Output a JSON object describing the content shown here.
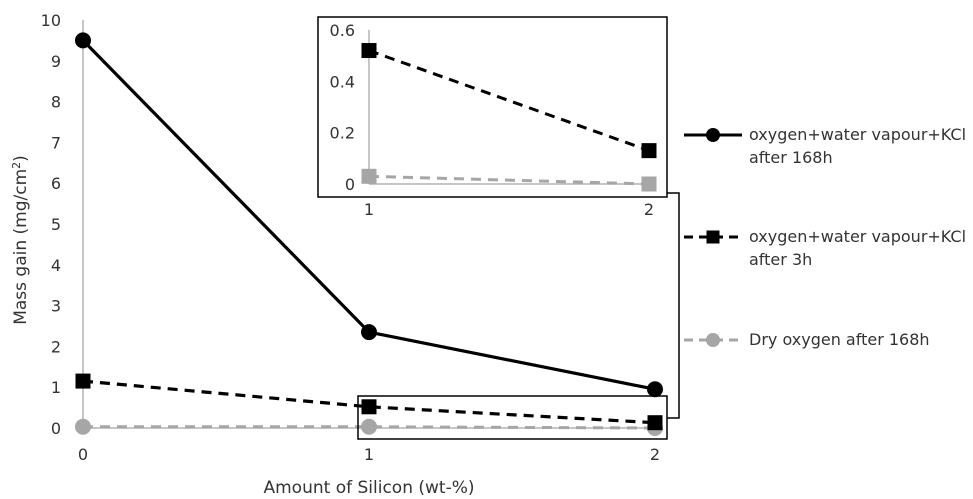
{
  "chart_data": {
    "type": "line",
    "xlabel": "Amount of Silicon (wt-%)",
    "ylabel": "Mass gain (mg/cm²)",
    "ylabel_parts": {
      "pre": "Mass gain (mg/cm",
      "sup": "2",
      "post": ")"
    },
    "x": [
      0,
      1,
      2
    ],
    "x_ticks": [
      "0",
      "1",
      "2"
    ],
    "ylim": [
      0,
      10
    ],
    "y_ticks": [
      "0",
      "1",
      "2",
      "3",
      "4",
      "5",
      "6",
      "7",
      "8",
      "9",
      "10"
    ],
    "grid": false,
    "legend_position": "right",
    "series": [
      {
        "name": "oxygen+water vapour+KCl after 168h",
        "legend_lines": [
          "oxygen+water vapour+KCl",
          "after 168h"
        ],
        "values": [
          9.5,
          2.35,
          0.95
        ],
        "color": "#000000",
        "dash": "solid",
        "marker": "circle"
      },
      {
        "name": "oxygen+water vapour+KCl after 3h",
        "legend_lines": [
          "oxygen+water vapour+KCl",
          "after 3h"
        ],
        "values": [
          1.15,
          0.52,
          0.13
        ],
        "color": "#000000",
        "dash": "dashed",
        "marker": "square"
      },
      {
        "name": "Dry oxygen after 168h",
        "legend_lines": [
          "Dry oxygen after 168h"
        ],
        "values": [
          0.03,
          0.03,
          0.0
        ],
        "color": "#a6a6a6",
        "dash": "dashed",
        "marker": "circle"
      }
    ],
    "inset": {
      "x": [
        1,
        2
      ],
      "x_ticks": [
        "1",
        "2"
      ],
      "ylim": [
        0,
        0.6
      ],
      "y_ticks": [
        "0",
        "0.2",
        "0.4",
        "0.6"
      ],
      "series": [
        {
          "values": [
            0.52,
            0.13
          ],
          "color": "#000000",
          "marker": "square"
        },
        {
          "values": [
            0.03,
            0.0
          ],
          "color": "#a6a6a6",
          "marker": "square"
        }
      ]
    }
  }
}
